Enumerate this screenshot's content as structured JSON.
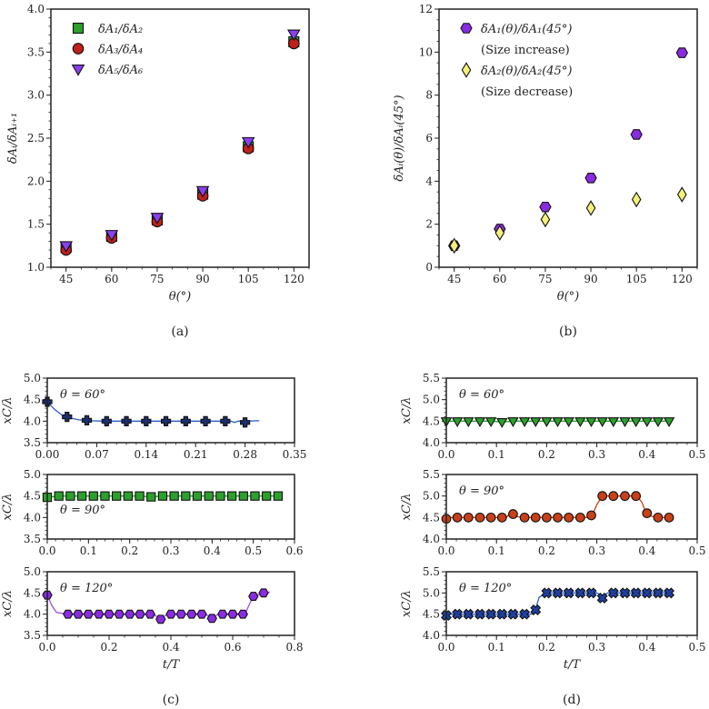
{
  "captions": [
    "(a)",
    "(b)",
    "(c)",
    "(d)"
  ],
  "chart_data": [
    {
      "panel": "a",
      "type": "scatter",
      "xlabel": "θ(°)",
      "ylabel": "δAᵢ/δAᵢ₊₁",
      "xlim": [
        40,
        125
      ],
      "ylim": [
        1.0,
        4.0
      ],
      "xticks": [
        45,
        60,
        75,
        90,
        105,
        120
      ],
      "xtick_labels": [
        "45",
        "60",
        "75",
        "90",
        "105",
        "120"
      ],
      "yticks": [
        1.0,
        1.5,
        2.0,
        2.5,
        3.0,
        3.5,
        4.0
      ],
      "ytick_labels": [
        "1.0",
        "1.5",
        "2.0",
        "2.5",
        "3.0",
        "3.5",
        "4.0"
      ],
      "grid": false,
      "legend": "top-left",
      "series": [
        {
          "name": "δA₁/δA₂",
          "marker": "square",
          "color": "#2ca02c",
          "x": [
            45,
            60,
            75,
            90,
            105,
            120
          ],
          "y": [
            1.23,
            1.36,
            1.55,
            1.85,
            2.4,
            3.62
          ]
        },
        {
          "name": "δA₃/δA₄",
          "marker": "circle",
          "color": "#c0201a",
          "x": [
            45,
            60,
            75,
            90,
            105,
            120
          ],
          "y": [
            1.2,
            1.34,
            1.53,
            1.83,
            2.38,
            3.6
          ]
        },
        {
          "name": "δA₅/δA₆",
          "marker": "triangle-down",
          "color": "#8a3ff0",
          "x": [
            45,
            60,
            75,
            90,
            105,
            120
          ],
          "y": [
            1.25,
            1.38,
            1.58,
            1.89,
            2.46,
            3.71
          ]
        }
      ]
    },
    {
      "panel": "b",
      "type": "scatter",
      "xlabel": "θ(°)",
      "ylabel": "δAᵢ(θ)/δAᵢ(45°)",
      "xlim": [
        40,
        125
      ],
      "ylim": [
        0,
        12
      ],
      "xticks": [
        45,
        60,
        75,
        90,
        105,
        120
      ],
      "xtick_labels": [
        "45",
        "60",
        "75",
        "90",
        "105",
        "120"
      ],
      "yticks": [
        0,
        2,
        4,
        6,
        8,
        10,
        12
      ],
      "ytick_labels": [
        "0",
        "2",
        "4",
        "6",
        "8",
        "10",
        "12"
      ],
      "grid": false,
      "legend": "top-left",
      "series": [
        {
          "name": "δA₁(θ)/δA₁(45°)",
          "name2": "(Size increase)",
          "marker": "hexagon",
          "color": "#8a2be2",
          "x": [
            45,
            60,
            75,
            90,
            105,
            120
          ],
          "y": [
            1.0,
            1.78,
            2.8,
            4.15,
            6.17,
            9.97
          ]
        },
        {
          "name": "δA₂(θ)/δA₂(45°)",
          "name2": "(Size decrease)",
          "marker": "diamond",
          "color": "#f5f07a",
          "x": [
            45,
            60,
            75,
            90,
            105,
            120
          ],
          "y": [
            1.0,
            1.6,
            2.22,
            2.75,
            3.15,
            3.38
          ]
        }
      ]
    },
    {
      "panel": "c",
      "type": "line",
      "annotation": "θ = 60°",
      "xlabel": "",
      "ylabel": "xC/λ",
      "xlim": [
        0,
        0.35
      ],
      "ylim": [
        3.5,
        5.0
      ],
      "xticks": [
        0,
        0.07,
        0.14,
        0.21,
        0.28,
        0.35
      ],
      "xtick_labels": [
        "0.00",
        "0.07",
        "0.14",
        "0.21",
        "0.28",
        "0.35"
      ],
      "yticks": [
        3.5,
        4.0,
        4.5,
        5.0
      ],
      "ytick_labels": [
        "3.5",
        "4.0",
        "4.5",
        "5.0"
      ],
      "series": [
        {
          "marker": "plus",
          "color": "#1c2e6e",
          "line_color": "#2a5cc8",
          "x": [
            0,
            0.028,
            0.056,
            0.084,
            0.112,
            0.14,
            0.168,
            0.196,
            0.224,
            0.252,
            0.28
          ],
          "y": [
            4.45,
            4.1,
            4.02,
            4.0,
            4.0,
            4.0,
            4.0,
            4.0,
            4.0,
            4.0,
            3.97
          ],
          "line_x": [
            0,
            0.01,
            0.02,
            0.03,
            0.045,
            0.06,
            0.08,
            0.26,
            0.265,
            0.27,
            0.28,
            0.3
          ],
          "line_y": [
            4.45,
            4.28,
            4.15,
            4.08,
            4.03,
            4.01,
            4.0,
            4.0,
            3.97,
            4.0,
            4.0,
            4.01
          ]
        }
      ]
    },
    {
      "panel": "c",
      "type": "line",
      "annotation": "θ = 90°",
      "xlabel": "",
      "ylabel": "xC/λ",
      "xlim": [
        0,
        0.6
      ],
      "ylim": [
        3.5,
        5.0
      ],
      "xticks": [
        0,
        0.1,
        0.2,
        0.3,
        0.4,
        0.5,
        0.6
      ],
      "xtick_labels": [
        "0.0",
        "0.1",
        "0.2",
        "0.3",
        "0.4",
        "0.5",
        "0.6"
      ],
      "yticks": [
        3.5,
        4.0,
        4.5,
        5.0
      ],
      "ytick_labels": [
        "3.5",
        "4.0",
        "4.5",
        "5.0"
      ],
      "series": [
        {
          "marker": "square",
          "color": "#2ca02c",
          "line_color": "#2ca02c",
          "x": [
            0,
            0.028,
            0.056,
            0.084,
            0.112,
            0.14,
            0.168,
            0.196,
            0.224,
            0.252,
            0.28,
            0.308,
            0.336,
            0.364,
            0.392,
            0.42,
            0.448,
            0.476,
            0.504,
            0.532,
            0.56
          ],
          "y": [
            4.47,
            4.5,
            4.5,
            4.5,
            4.5,
            4.5,
            4.5,
            4.5,
            4.5,
            4.48,
            4.5,
            4.5,
            4.5,
            4.5,
            4.5,
            4.5,
            4.5,
            4.5,
            4.5,
            4.5,
            4.5
          ]
        }
      ]
    },
    {
      "panel": "c",
      "type": "line",
      "annotation": "θ = 120°",
      "xlabel": "t/T",
      "ylabel": "xC/λ",
      "xlim": [
        0,
        0.8
      ],
      "ylim": [
        3.5,
        5.0
      ],
      "xticks": [
        0,
        0.2,
        0.4,
        0.6,
        0.8
      ],
      "xtick_labels": [
        "0.0",
        "0.2",
        "0.4",
        "0.6",
        "0.8"
      ],
      "yticks": [
        3.5,
        4.0,
        4.5,
        5.0
      ],
      "ytick_labels": [
        "3.5",
        "4.0",
        "4.5",
        "5.0"
      ],
      "series": [
        {
          "marker": "hexagon",
          "color": "#8a2be2",
          "line_color": "#9b4fe0",
          "x": [
            0,
            0.067,
            0.1,
            0.133,
            0.167,
            0.2,
            0.233,
            0.267,
            0.3,
            0.333,
            0.367,
            0.4,
            0.433,
            0.467,
            0.5,
            0.533,
            0.567,
            0.6,
            0.633,
            0.667,
            0.7
          ],
          "y": [
            4.45,
            4.0,
            4.0,
            4.0,
            4.0,
            4.0,
            4.0,
            4.0,
            4.0,
            4.0,
            3.88,
            4.0,
            4.0,
            4.0,
            4.0,
            3.9,
            4.0,
            4.0,
            4.0,
            4.42,
            4.5
          ],
          "line_x": [
            0,
            0.015,
            0.03,
            0.067,
            0.34,
            0.367,
            0.39,
            0.51,
            0.533,
            0.555,
            0.64,
            0.655,
            0.667,
            0.7,
            0.72
          ],
          "line_y": [
            4.45,
            4.2,
            4.04,
            4.0,
            4.0,
            3.9,
            4.0,
            4.0,
            3.92,
            4.0,
            4.0,
            4.25,
            4.42,
            4.5,
            4.52
          ]
        }
      ]
    },
    {
      "panel": "d",
      "type": "line",
      "annotation": "θ = 60°",
      "xlabel": "",
      "ylabel": "xC/λ",
      "xlim": [
        0,
        0.5
      ],
      "ylim": [
        4.0,
        5.5
      ],
      "xticks": [
        0,
        0.1,
        0.2,
        0.3,
        0.4,
        0.5
      ],
      "xtick_labels": [
        "0.0",
        "0.1",
        "0.2",
        "0.3",
        "0.4",
        "0.5"
      ],
      "yticks": [
        4.0,
        4.5,
        5.0,
        5.5
      ],
      "ytick_labels": [
        "4.0",
        "4.5",
        "5.0",
        "5.5"
      ],
      "series": [
        {
          "marker": "triangle-down",
          "color": "#2ca02c",
          "line_color": "#2ca02c",
          "x": [
            0,
            0.022,
            0.044,
            0.067,
            0.089,
            0.111,
            0.133,
            0.156,
            0.178,
            0.2,
            0.222,
            0.244,
            0.267,
            0.289,
            0.311,
            0.333,
            0.356,
            0.378,
            0.4,
            0.422,
            0.444
          ],
          "y": [
            4.5,
            4.5,
            4.5,
            4.5,
            4.5,
            4.48,
            4.5,
            4.5,
            4.5,
            4.5,
            4.5,
            4.5,
            4.5,
            4.5,
            4.5,
            4.5,
            4.5,
            4.5,
            4.5,
            4.5,
            4.5
          ]
        }
      ]
    },
    {
      "panel": "d",
      "type": "line",
      "annotation": "θ = 90°",
      "xlabel": "",
      "ylabel": "xC/λ",
      "xlim": [
        0,
        0.5
      ],
      "ylim": [
        4.0,
        5.5
      ],
      "xticks": [
        0,
        0.1,
        0.2,
        0.3,
        0.4,
        0.5
      ],
      "xtick_labels": [
        "0.0",
        "0.1",
        "0.2",
        "0.3",
        "0.4",
        "0.5"
      ],
      "yticks": [
        4.0,
        4.5,
        5.0,
        5.5
      ],
      "ytick_labels": [
        "4.0",
        "4.5",
        "5.0",
        "5.5"
      ],
      "series": [
        {
          "marker": "circle",
          "color": "#c8401a",
          "line_color": "#c8401a",
          "x": [
            0,
            0.022,
            0.044,
            0.067,
            0.089,
            0.111,
            0.133,
            0.156,
            0.178,
            0.2,
            0.222,
            0.244,
            0.267,
            0.289,
            0.311,
            0.333,
            0.356,
            0.378,
            0.4,
            0.422,
            0.444
          ],
          "y": [
            4.47,
            4.5,
            4.5,
            4.5,
            4.5,
            4.5,
            4.58,
            4.5,
            4.5,
            4.5,
            4.5,
            4.5,
            4.5,
            4.55,
            5.0,
            5.0,
            5.0,
            5.0,
            4.6,
            4.5,
            4.5
          ],
          "line_x": [
            0,
            0.12,
            0.128,
            0.133,
            0.14,
            0.156,
            0.289,
            0.3,
            0.311,
            0.38,
            0.39,
            0.4,
            0.422,
            0.444
          ],
          "line_y": [
            4.5,
            4.5,
            4.63,
            4.58,
            4.52,
            4.5,
            4.5,
            4.8,
            5.0,
            5.0,
            4.85,
            4.55,
            4.5,
            4.5
          ]
        }
      ]
    },
    {
      "panel": "d",
      "type": "line",
      "annotation": "θ = 120°",
      "xlabel": "t/T",
      "ylabel": "xC/λ",
      "xlim": [
        0,
        0.5
      ],
      "ylim": [
        4.0,
        5.5
      ],
      "xticks": [
        0,
        0.1,
        0.2,
        0.3,
        0.4,
        0.5
      ],
      "xtick_labels": [
        "0.0",
        "0.1",
        "0.2",
        "0.3",
        "0.4",
        "0.5"
      ],
      "yticks": [
        4.0,
        4.5,
        5.0,
        5.5
      ],
      "ytick_labels": [
        "4.0",
        "4.5",
        "5.0",
        "5.5"
      ],
      "series": [
        {
          "marker": "x",
          "color": "#1f3fa0",
          "line_color": "#2a5cc8",
          "x": [
            0,
            0.022,
            0.044,
            0.067,
            0.089,
            0.111,
            0.133,
            0.156,
            0.178,
            0.2,
            0.222,
            0.244,
            0.267,
            0.289,
            0.311,
            0.333,
            0.356,
            0.378,
            0.4,
            0.422,
            0.444
          ],
          "y": [
            4.47,
            4.5,
            4.5,
            4.5,
            4.5,
            4.5,
            4.5,
            4.5,
            4.6,
            5.0,
            5.0,
            5.0,
            5.0,
            5.0,
            4.88,
            5.0,
            5.0,
            5.0,
            5.0,
            5.0,
            5.0
          ],
          "line_x": [
            0,
            0.17,
            0.178,
            0.185,
            0.2,
            0.3,
            0.311,
            0.322,
            0.444
          ],
          "line_y": [
            4.5,
            4.5,
            4.62,
            4.9,
            5.0,
            5.0,
            4.93,
            5.0,
            5.0
          ]
        }
      ]
    }
  ]
}
